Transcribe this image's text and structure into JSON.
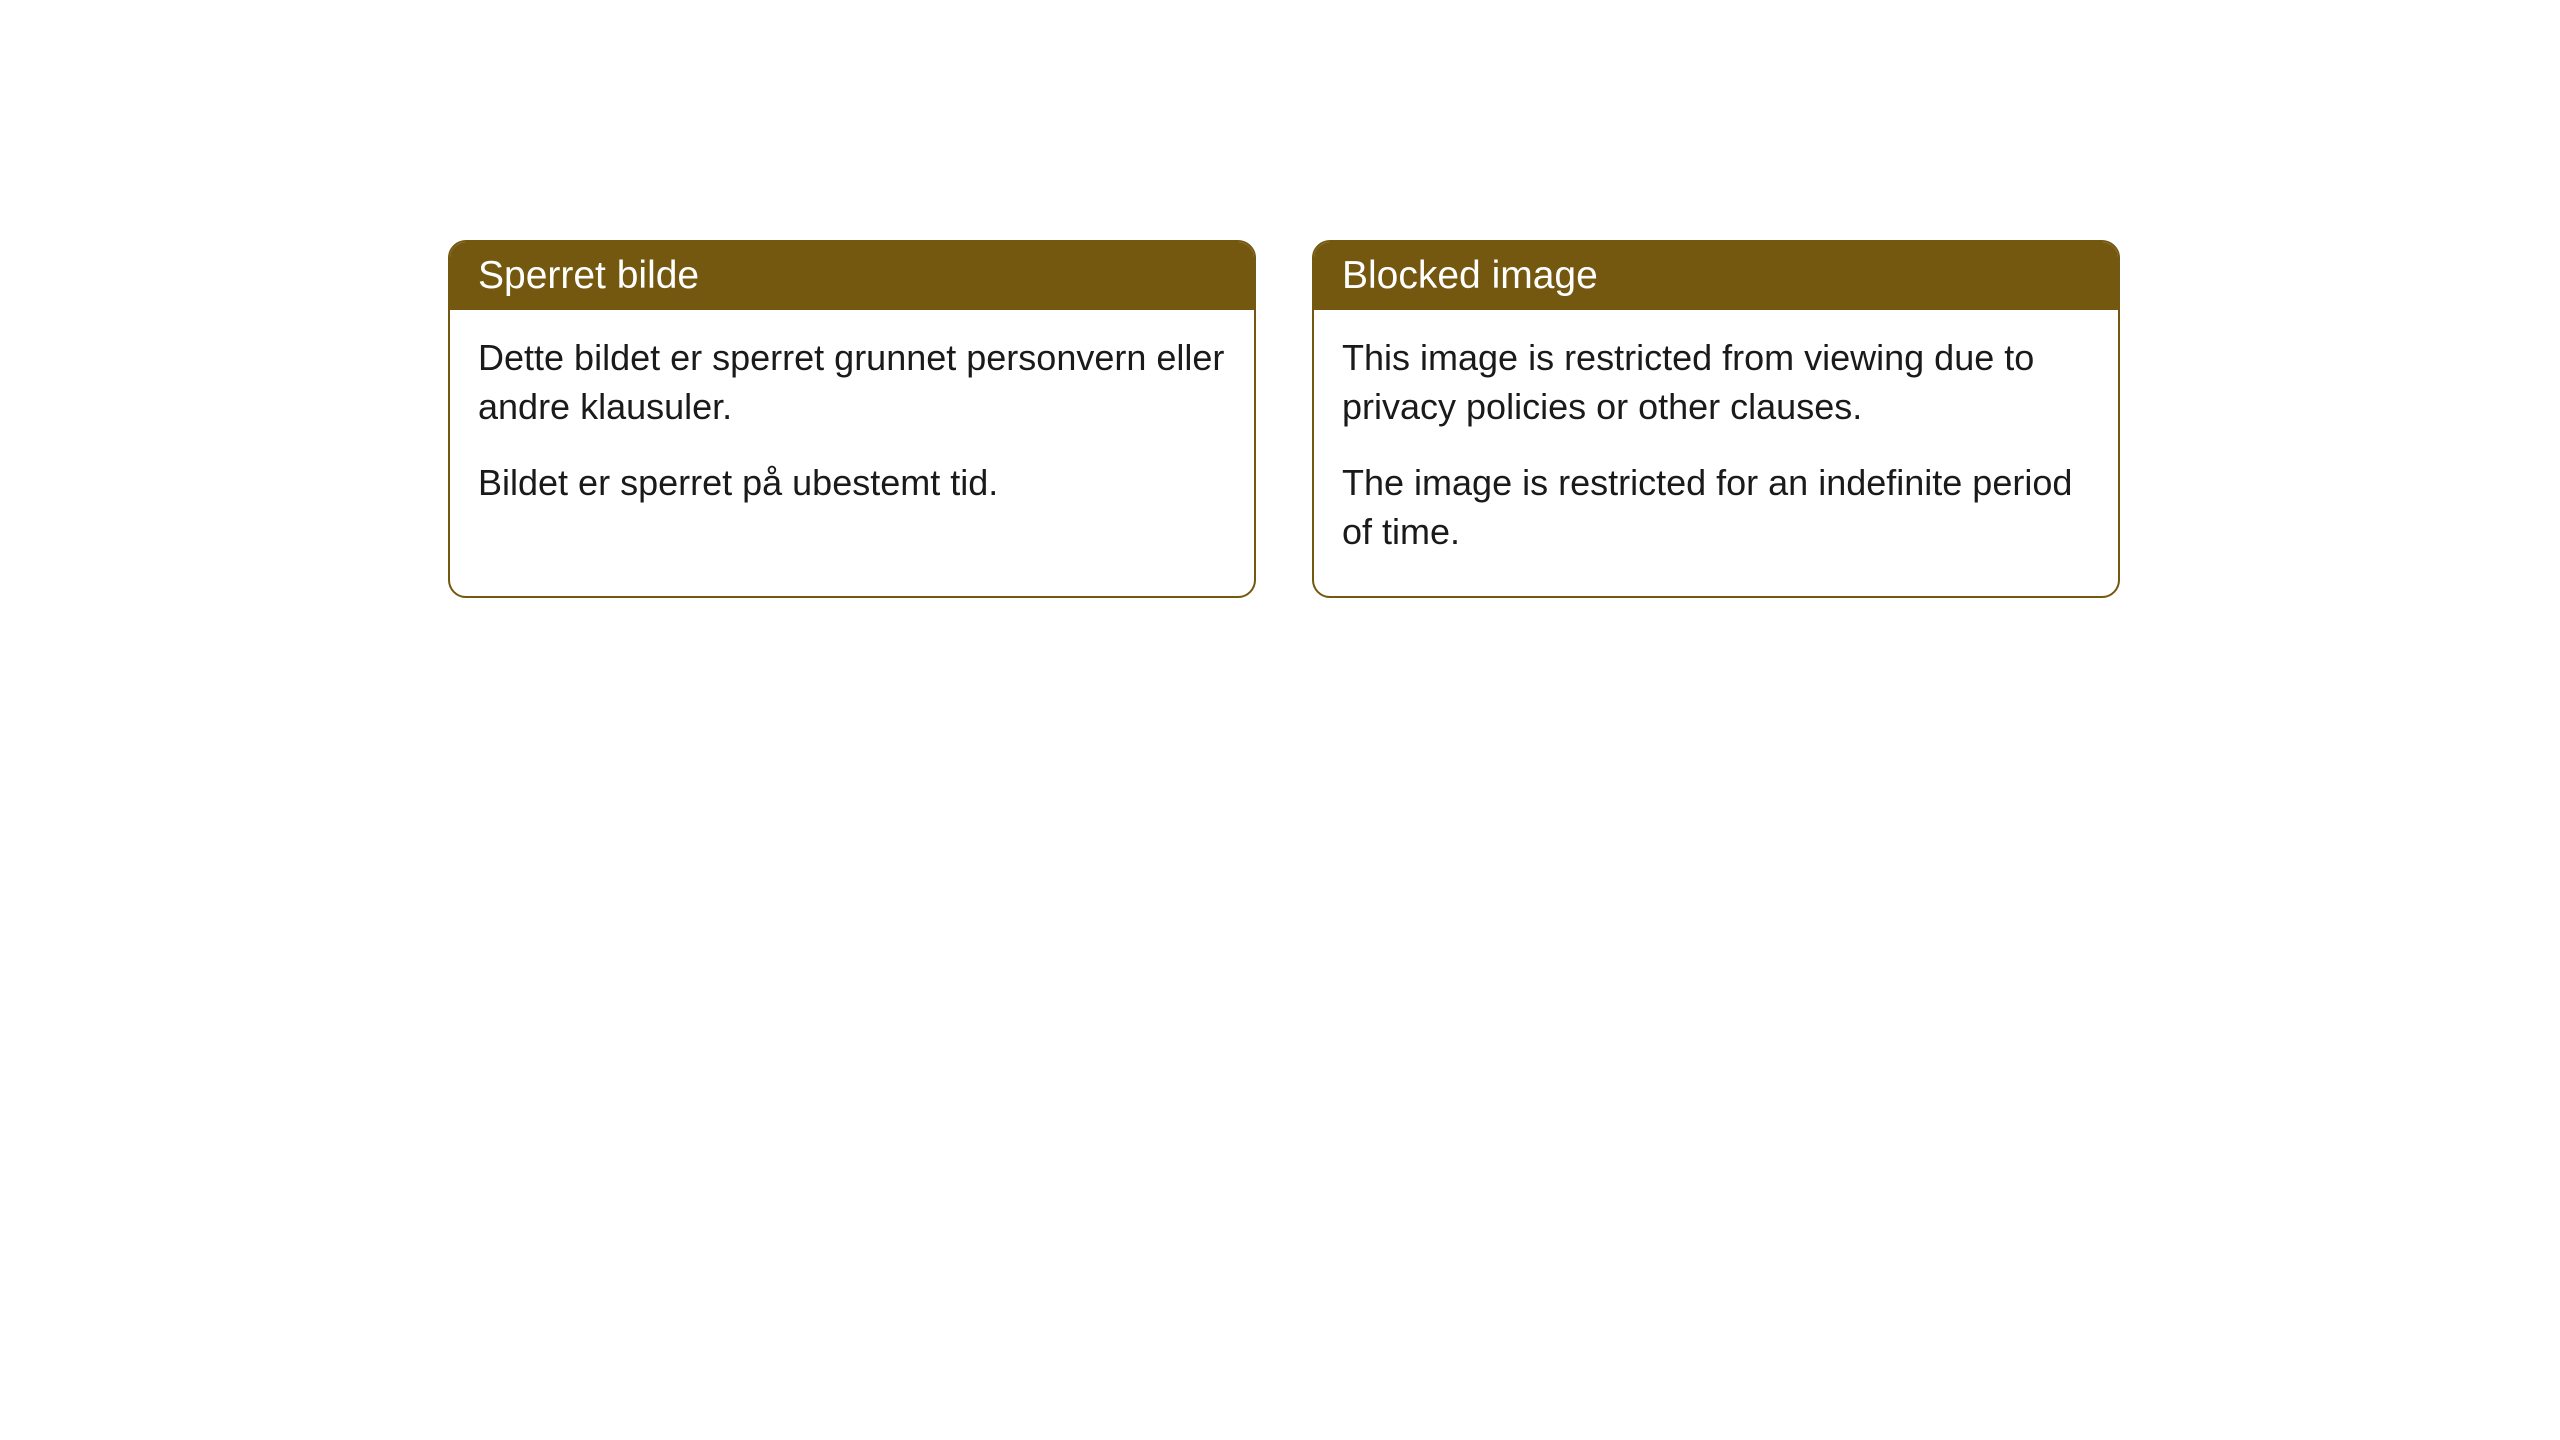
{
  "cards": [
    {
      "title": "Sperret bilde",
      "paragraph1": "Dette bildet er sperret grunnet personvern eller andre klausuler.",
      "paragraph2": "Bildet er sperret på ubestemt tid."
    },
    {
      "title": "Blocked image",
      "paragraph1": "This image is restricted from viewing due to privacy policies or other clauses.",
      "paragraph2": "The image is restricted for an indefinite period of time."
    }
  ],
  "style": {
    "header_background": "#75580f",
    "header_text_color": "#ffffff",
    "border_color": "#75580f",
    "body_background": "#ffffff",
    "body_text_color": "#1a1a1a",
    "border_radius": 18,
    "title_fontsize": 39,
    "body_fontsize": 36
  }
}
